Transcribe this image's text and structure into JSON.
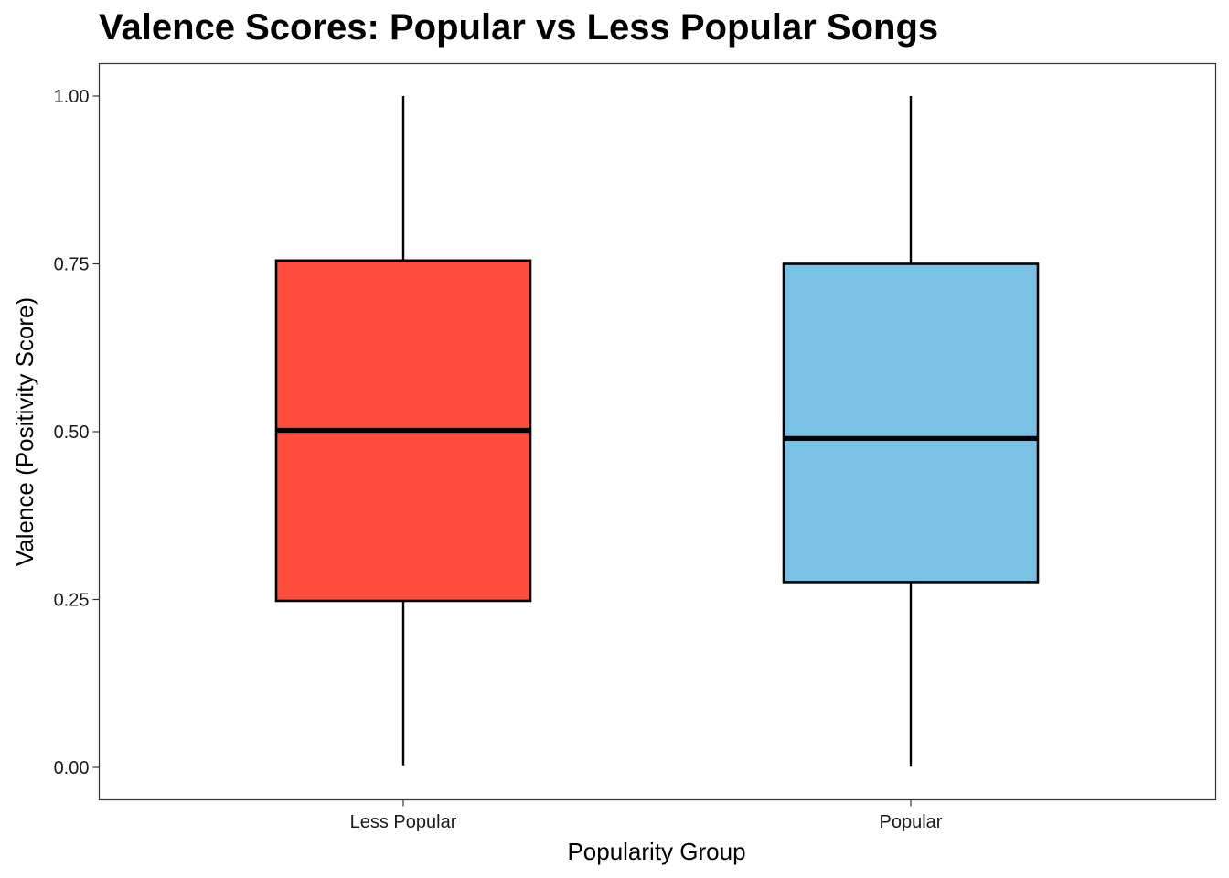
{
  "chart_data": {
    "type": "boxplot",
    "title": "Valence Scores: Popular vs Less Popular Songs",
    "xlabel": "Popularity Group",
    "ylabel": "Valence (Positivity Score)",
    "ylim": [
      0,
      1
    ],
    "yticks": [
      0.0,
      0.25,
      0.5,
      0.75,
      1.0
    ],
    "ytick_labels": [
      "0.00",
      "0.25",
      "0.50",
      "0.75",
      "1.00"
    ],
    "grid": false,
    "legend": "none",
    "categories": [
      "Less Popular",
      "Popular"
    ],
    "boxes": [
      {
        "category": "Less Popular",
        "min": 0.003,
        "q1": 0.248,
        "median": 0.502,
        "q3": 0.755,
        "max": 1.0,
        "color": "#FF4D3D"
      },
      {
        "category": "Popular",
        "min": 0.001,
        "q1": 0.276,
        "median": 0.49,
        "q3": 0.75,
        "max": 1.0,
        "color": "#7AC2E5"
      }
    ]
  }
}
